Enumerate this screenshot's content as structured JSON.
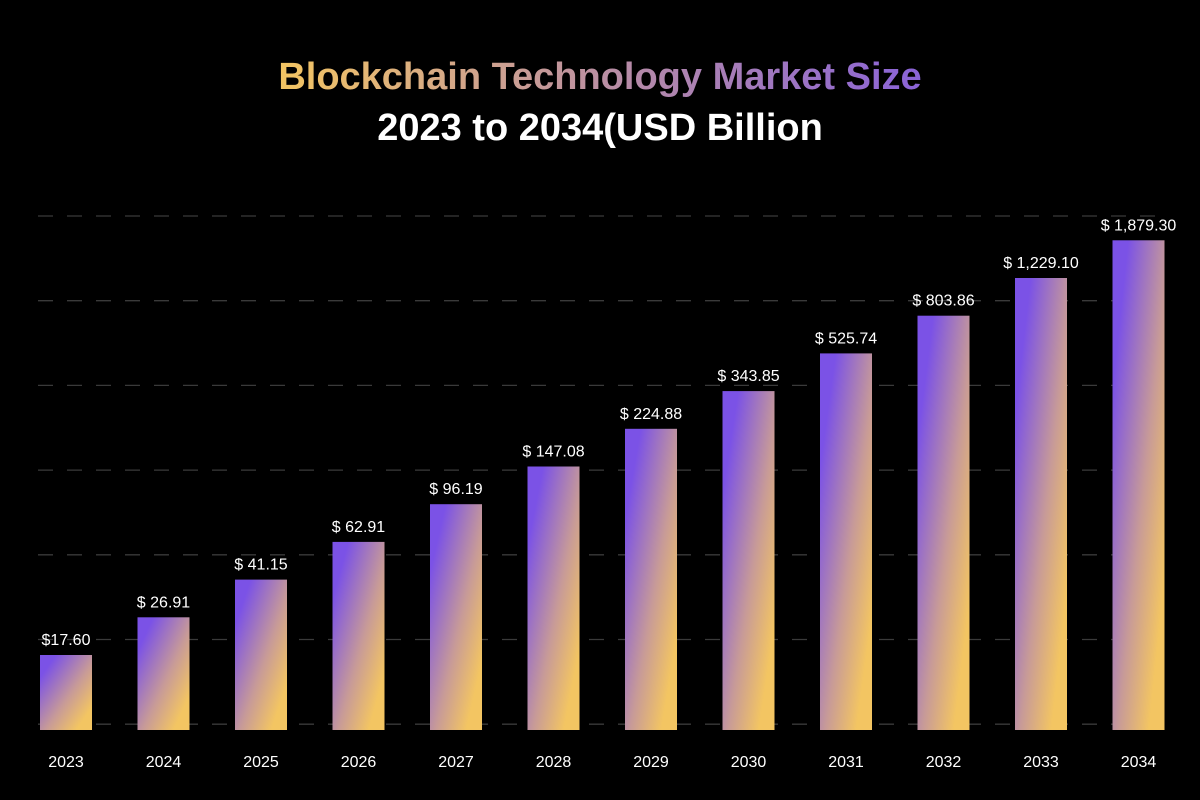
{
  "chart_data": {
    "type": "bar",
    "title": "Blockchain Technology Market Size",
    "subtitle": "2023 to 2034(USD Billion",
    "xlabel": "",
    "ylabel": "",
    "grid": true,
    "legend": "none",
    "categories": [
      "2023",
      "2024",
      "2025",
      "2026",
      "2027",
      "2028",
      "2029",
      "2030",
      "2031",
      "2032",
      "2033",
      "2034"
    ],
    "values": [
      17.6,
      26.91,
      41.15,
      62.91,
      96.19,
      147.08,
      224.88,
      343.85,
      525.74,
      803.86,
      1229.1,
      1879.3
    ],
    "data_labels": [
      "$17.60",
      "$ 26.91",
      "$ 41.15",
      "$ 62.91",
      "$ 96.19",
      "$ 147.08",
      "$ 224.88",
      "$ 343.85",
      "$ 525.74",
      "$ 803.86",
      "$ 1,229.10",
      "$ 1,879.30"
    ],
    "colors": {
      "bar_gradient_start": "#7b52e6",
      "bar_gradient_end": "#f3c562",
      "title_gradient": [
        "#f3c562",
        "#8a63d8"
      ],
      "gridline": "#3a3a3a",
      "background": "#000000"
    }
  }
}
